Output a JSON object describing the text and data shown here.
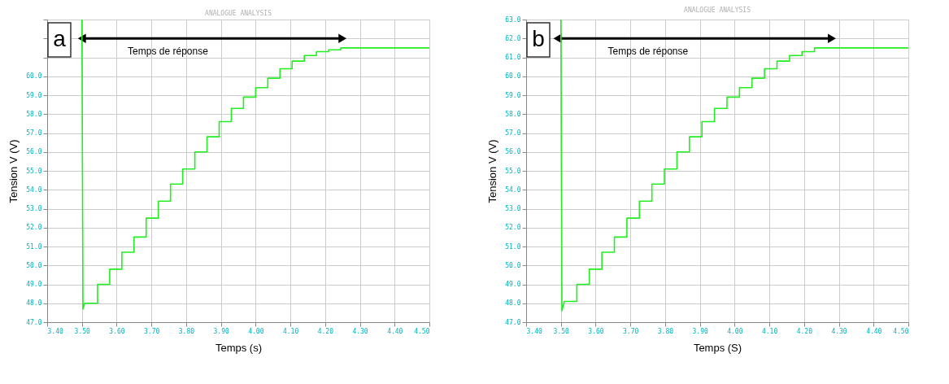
{
  "chart_data": [
    {
      "type": "line",
      "title": "ANALOGUE ANALYSIS",
      "xlabel": "Temps (s)",
      "ylabel": "Tension V (V)",
      "annotations": [
        "a",
        "Temps de réponse"
      ],
      "xlim": [
        3.4,
        4.5
      ],
      "ylim": [
        47,
        63
      ],
      "xticks": [
        {
          "value": 3.4,
          "label": "3.40"
        },
        {
          "value": 3.5,
          "label": "3.50"
        },
        {
          "value": 3.6,
          "label": "3.60"
        },
        {
          "value": 3.7,
          "label": "3.70"
        },
        {
          "value": 3.8,
          "label": "3.80"
        },
        {
          "value": 3.9,
          "label": "3.90"
        },
        {
          "value": 4.0,
          "label": "4.00"
        },
        {
          "value": 4.1,
          "label": "4.10"
        },
        {
          "value": 4.2,
          "label": "4.20"
        },
        {
          "value": 4.3,
          "label": "4.30"
        },
        {
          "value": 4.4,
          "label": "4.40"
        },
        {
          "value": 4.5,
          "label": "4.50"
        }
      ],
      "yticks": [
        {
          "value": 47,
          "label": "47.0"
        },
        {
          "value": 48,
          "label": "48.0"
        },
        {
          "value": 49,
          "label": "49.0"
        },
        {
          "value": 50,
          "label": "50.0"
        },
        {
          "value": 51,
          "label": "51.0"
        },
        {
          "value": 52,
          "label": "52.0"
        },
        {
          "value": 53,
          "label": "53.0"
        },
        {
          "value": 54,
          "label": "54.0"
        },
        {
          "value": 55,
          "label": "55.0"
        },
        {
          "value": 56,
          "label": "56.0"
        },
        {
          "value": 57,
          "label": "57.0"
        },
        {
          "value": 58,
          "label": "58.0"
        },
        {
          "value": 59,
          "label": "59.0"
        },
        {
          "value": 60,
          "label": "60.0"
        },
        {
          "value": 61,
          "label": null
        },
        {
          "value": 62,
          "label": null
        },
        {
          "value": 63,
          "label": null
        }
      ],
      "grid": true,
      "series": [
        {
          "type": "line",
          "color": "#000000",
          "marker": "triangle",
          "x": [
            3.5,
            4.25
          ],
          "values": [
            62,
            62
          ]
        },
        {
          "color": "#22ee22",
          "x": [
            3.5,
            3.503,
            3.508,
            3.545,
            3.545,
            3.58,
            3.58,
            3.615,
            3.615,
            3.65,
            3.65,
            3.685,
            3.685,
            3.72,
            3.72,
            3.755,
            3.755,
            3.79,
            3.79,
            3.825,
            3.825,
            3.86,
            3.86,
            3.895,
            3.895,
            3.93,
            3.93,
            3.965,
            3.965,
            4.0,
            4.0,
            4.035,
            4.035,
            4.07,
            4.07,
            4.105,
            4.105,
            4.14,
            4.14,
            4.175,
            4.175,
            4.21,
            4.21,
            4.245,
            4.245,
            4.5
          ],
          "values": [
            63,
            47.7,
            48.0,
            48.0,
            49.0,
            49.0,
            49.8,
            49.8,
            50.7,
            50.7,
            51.5,
            51.5,
            52.5,
            52.5,
            53.4,
            53.4,
            54.3,
            54.3,
            55.1,
            55.1,
            56.0,
            56.0,
            56.8,
            56.8,
            57.6,
            57.6,
            58.3,
            58.3,
            58.9,
            58.9,
            59.4,
            59.4,
            59.9,
            59.9,
            60.4,
            60.4,
            60.8,
            60.8,
            61.1,
            61.1,
            61.3,
            61.3,
            61.4,
            61.4,
            61.5,
            61.5
          ]
        }
      ]
    },
    {
      "type": "line",
      "title": "ANALOGUE ANALYSIS",
      "xlabel": "Temps (S)",
      "ylabel": "Tension V (V)",
      "annotations": [
        "b",
        "Temps de réponse"
      ],
      "xlim": [
        3.4,
        4.5
      ],
      "ylim": [
        47,
        63
      ],
      "xticks": [
        {
          "value": 3.4,
          "label": "3.40"
        },
        {
          "value": 3.5,
          "label": "3.50"
        },
        {
          "value": 3.6,
          "label": "3.60"
        },
        {
          "value": 3.7,
          "label": "3.70"
        },
        {
          "value": 3.8,
          "label": "3.80"
        },
        {
          "value": 3.9,
          "label": "3.90"
        },
        {
          "value": 4.0,
          "label": "4.00"
        },
        {
          "value": 4.1,
          "label": "4.10"
        },
        {
          "value": 4.2,
          "label": "4.20"
        },
        {
          "value": 4.3,
          "label": "4.30"
        },
        {
          "value": 4.4,
          "label": "4.40"
        },
        {
          "value": 4.5,
          "label": "4.50"
        }
      ],
      "yticks": [
        {
          "value": 47,
          "label": "47.0"
        },
        {
          "value": 48,
          "label": "48.0"
        },
        {
          "value": 49,
          "label": "49.0"
        },
        {
          "value": 50,
          "label": "50.0"
        },
        {
          "value": 51,
          "label": "51.0"
        },
        {
          "value": 52,
          "label": "52.0"
        },
        {
          "value": 53,
          "label": "53.0"
        },
        {
          "value": 54,
          "label": "54.0"
        },
        {
          "value": 55,
          "label": "55.0"
        },
        {
          "value": 56,
          "label": "56.0"
        },
        {
          "value": 57,
          "label": "57.0"
        },
        {
          "value": 58,
          "label": "58.0"
        },
        {
          "value": 59,
          "label": "59.0"
        },
        {
          "value": 60,
          "label": "60.0"
        },
        {
          "value": 61,
          "label": "61.0"
        },
        {
          "value": 62,
          "label": "62.0"
        },
        {
          "value": 63,
          "label": "63.0"
        }
      ],
      "grid": true,
      "series": [
        {
          "type": "line",
          "color": "#000000",
          "marker": "triangle",
          "x": [
            3.49,
            4.28
          ],
          "values": [
            62,
            62
          ]
        },
        {
          "color": "#22ee22",
          "x": [
            3.5,
            3.503,
            3.51,
            3.546,
            3.546,
            3.582,
            3.582,
            3.618,
            3.618,
            3.654,
            3.654,
            3.69,
            3.69,
            3.726,
            3.726,
            3.762,
            3.762,
            3.798,
            3.798,
            3.834,
            3.834,
            3.87,
            3.87,
            3.906,
            3.906,
            3.942,
            3.942,
            3.978,
            3.978,
            4.014,
            4.014,
            4.05,
            4.05,
            4.086,
            4.086,
            4.122,
            4.122,
            4.158,
            4.158,
            4.194,
            4.194,
            4.23,
            4.23,
            4.5
          ],
          "values": [
            63,
            47.6,
            48.1,
            48.1,
            49.0,
            49.0,
            49.8,
            49.8,
            50.7,
            50.7,
            51.5,
            51.5,
            52.5,
            52.5,
            53.4,
            53.4,
            54.3,
            54.3,
            55.1,
            55.1,
            56.0,
            56.0,
            56.8,
            56.8,
            57.6,
            57.6,
            58.3,
            58.3,
            58.9,
            58.9,
            59.4,
            59.4,
            59.9,
            59.9,
            60.4,
            60.4,
            60.8,
            60.8,
            61.1,
            61.1,
            61.3,
            61.3,
            61.5,
            61.5
          ]
        }
      ]
    }
  ]
}
